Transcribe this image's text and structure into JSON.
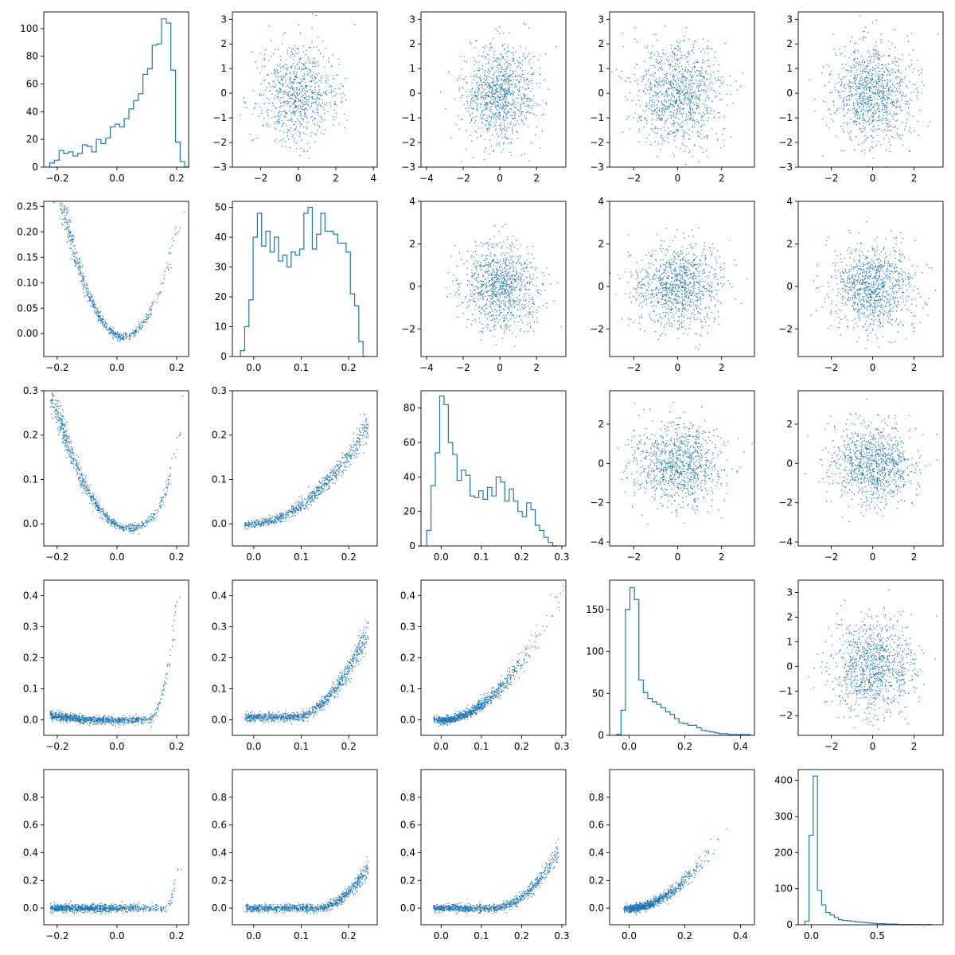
{
  "figure": {
    "rows": 5,
    "cols": 5
  },
  "style": {
    "line_color": "#1f77b4",
    "axes_color": "#000000",
    "background": "#ffffff"
  },
  "chart_data": [
    {
      "type": "histogram",
      "row": 0,
      "col": 0,
      "xlim": [
        -0.245,
        0.24
      ],
      "ylim": [
        0,
        112
      ],
      "xticks": [
        -0.2,
        0.0,
        0.2
      ],
      "xticklabels": [
        "−0.2",
        "0.0",
        "0.2"
      ],
      "yticks": [
        0,
        20,
        40,
        60,
        80,
        100
      ],
      "yticklabels": [
        "0",
        "20",
        "40",
        "60",
        "80",
        "100"
      ],
      "bins": [
        -0.225,
        -0.2094,
        -0.1938,
        -0.1782,
        -0.1626,
        -0.147,
        -0.1314,
        -0.1158,
        -0.1002,
        -0.0846,
        -0.069,
        -0.0534,
        -0.0378,
        -0.0222,
        -0.0066,
        0.009,
        0.0246,
        0.0402,
        0.0558,
        0.0714,
        0.087,
        0.1026,
        0.1182,
        0.1338,
        0.1494,
        0.165,
        0.1806,
        0.1962,
        0.2118,
        0.2274,
        0.243
      ],
      "counts": [
        3,
        5,
        12,
        10,
        11,
        8,
        10,
        16,
        15,
        11,
        20,
        17,
        21,
        29,
        31,
        29,
        35,
        42,
        48,
        53,
        67,
        71,
        88,
        89,
        107,
        104,
        70,
        18,
        4,
        0
      ]
    },
    {
      "type": "scatter",
      "row": 0,
      "col": 1,
      "xlim": [
        -3.5,
        4.2
      ],
      "ylim": [
        -3,
        3.3
      ],
      "dist": "gauss",
      "n": 800,
      "seed": 2,
      "xticks": [
        -2,
        0,
        2,
        4
      ],
      "xticklabels": [
        "−2",
        "0",
        "2",
        "4"
      ],
      "yticks": [
        -3,
        -2,
        -1,
        0,
        1,
        2,
        3
      ],
      "yticklabels": [
        "−3",
        "−2",
        "−1",
        "0",
        "1",
        "2",
        "3"
      ]
    },
    {
      "type": "scatter",
      "row": 0,
      "col": 2,
      "xlim": [
        -4.3,
        3.6
      ],
      "ylim": [
        -3,
        3.3
      ],
      "dist": "gauss",
      "n": 1000,
      "seed": 3,
      "xticks": [
        -4,
        -2,
        0,
        2
      ],
      "xticklabels": [
        "−4",
        "−2",
        "0",
        "2"
      ],
      "yticks": [
        -3,
        -2,
        -1,
        0,
        1,
        2,
        3
      ],
      "yticklabels": [
        "−3",
        "−2",
        "−1",
        "0",
        "1",
        "2",
        "3"
      ]
    },
    {
      "type": "scatter",
      "row": 0,
      "col": 3,
      "xlim": [
        -3.1,
        3.5
      ],
      "ylim": [
        -3,
        3.3
      ],
      "dist": "gauss",
      "n": 1000,
      "seed": 4,
      "xticks": [
        -2,
        0,
        2
      ],
      "xticklabels": [
        "−2",
        "0",
        "2"
      ],
      "yticks": [
        -3,
        -2,
        -1,
        0,
        1,
        2,
        3
      ],
      "yticklabels": [
        "−3",
        "−2",
        "−1",
        "0",
        "1",
        "2",
        "3"
      ]
    },
    {
      "type": "scatter",
      "row": 0,
      "col": 4,
      "xlim": [
        -3.6,
        3.4
      ],
      "ylim": [
        -3,
        3.3
      ],
      "dist": "gauss",
      "n": 1000,
      "seed": 5,
      "xticks": [
        -2,
        0,
        2
      ],
      "xticklabels": [
        "−2",
        "0",
        "2"
      ],
      "yticks": [
        -3,
        -2,
        -1,
        0,
        1,
        2,
        3
      ],
      "yticklabels": [
        "−3",
        "−2",
        "−1",
        "0",
        "1",
        "2",
        "3"
      ]
    },
    {
      "type": "scatter",
      "row": 1,
      "col": 0,
      "xlim": [
        -0.245,
        0.24
      ],
      "ylim": [
        -0.045,
        0.26
      ],
      "dist": "curve",
      "curve": "parab",
      "n": 700,
      "seed": 6,
      "xticks": [
        -0.2,
        0.0,
        0.2
      ],
      "xticklabels": [
        "−0.2",
        "0.0",
        "0.2"
      ],
      "yticks": [
        0,
        0.05,
        0.1,
        0.15,
        0.2,
        0.25
      ],
      "yticklabels": [
        "0.00",
        "0.05",
        "0.10",
        "0.15",
        "0.20",
        "0.25"
      ]
    },
    {
      "type": "histogram",
      "row": 1,
      "col": 1,
      "xlim": [
        -0.045,
        0.26
      ],
      "ylim": [
        0,
        52
      ],
      "xticks": [
        0.0,
        0.1,
        0.2
      ],
      "xticklabels": [
        "0.0",
        "0.1",
        "0.2"
      ],
      "yticks": [
        0,
        10,
        20,
        30,
        40,
        50
      ],
      "yticklabels": [
        "0",
        "10",
        "20",
        "30",
        "40",
        "50"
      ],
      "bins": [
        -0.028,
        -0.0191,
        -0.0102,
        -0.0013,
        0.0076,
        0.0165,
        0.0254,
        0.0343,
        0.0432,
        0.0521,
        0.061,
        0.0699,
        0.0788,
        0.0877,
        0.0966,
        0.1055,
        0.1144,
        0.1233,
        0.1322,
        0.1411,
        0.15,
        0.1589,
        0.1678,
        0.1767,
        0.1856,
        0.1945,
        0.2034,
        0.2123,
        0.2212,
        0.2301,
        0.239
      ],
      "counts": [
        2,
        10,
        19,
        40,
        48,
        37,
        42,
        35,
        40,
        32,
        34,
        30,
        35,
        34,
        36,
        48,
        50,
        36,
        41,
        48,
        42,
        42,
        41,
        38,
        38,
        35,
        21,
        17,
        5,
        0
      ]
    },
    {
      "type": "scatter",
      "row": 1,
      "col": 2,
      "xlim": [
        -4.3,
        3.6
      ],
      "ylim": [
        -3.3,
        4
      ],
      "dist": "gauss",
      "n": 1000,
      "seed": 7,
      "xticks": [
        -4,
        -2,
        0,
        2
      ],
      "xticklabels": [
        "−4",
        "−2",
        "0",
        "2"
      ],
      "yticks": [
        -2,
        0,
        2,
        4
      ],
      "yticklabels": [
        "−2",
        "0",
        "2",
        "4"
      ]
    },
    {
      "type": "scatter",
      "row": 1,
      "col": 3,
      "xlim": [
        -3.1,
        3.5
      ],
      "ylim": [
        -3.3,
        4
      ],
      "dist": "gauss",
      "n": 1000,
      "seed": 8,
      "xticks": [
        -2,
        0,
        2
      ],
      "xticklabels": [
        "−2",
        "0",
        "2"
      ],
      "yticks": [
        -2,
        0,
        2,
        4
      ],
      "yticklabels": [
        "−2",
        "0",
        "2",
        "4"
      ]
    },
    {
      "type": "scatter",
      "row": 1,
      "col": 4,
      "xlim": [
        -3.6,
        3.4
      ],
      "ylim": [
        -3.3,
        4
      ],
      "dist": "gauss",
      "n": 1000,
      "seed": 9,
      "xticks": [
        -2,
        0,
        2
      ],
      "xticklabels": [
        "−2",
        "0",
        "2"
      ],
      "yticks": [
        -2,
        0,
        2,
        4
      ],
      "yticklabels": [
        "−2",
        "0",
        "2",
        "4"
      ]
    },
    {
      "type": "scatter",
      "row": 2,
      "col": 0,
      "xlim": [
        -0.245,
        0.24
      ],
      "ylim": [
        -0.05,
        0.3
      ],
      "dist": "curve",
      "curve": "steep",
      "n": 800,
      "seed": 10,
      "xticks": [
        -0.2,
        0.0,
        0.2
      ],
      "xticklabels": [
        "−0.2",
        "0.0",
        "0.2"
      ],
      "yticks": [
        0,
        0.1,
        0.2,
        0.3
      ],
      "yticklabels": [
        "0.0",
        "0.1",
        "0.2",
        "0.3"
      ]
    },
    {
      "type": "scatter",
      "row": 2,
      "col": 1,
      "xlim": [
        -0.045,
        0.26
      ],
      "ylim": [
        -0.05,
        0.3
      ],
      "dist": "curve",
      "curve": "rise",
      "n": 800,
      "seed": 11,
      "xticks": [
        0.0,
        0.1,
        0.2
      ],
      "xticklabels": [
        "0.0",
        "0.1",
        "0.2"
      ],
      "yticks": [
        0,
        0.1,
        0.2,
        0.3
      ],
      "yticklabels": [
        "0.0",
        "0.1",
        "0.2",
        "0.3"
      ]
    },
    {
      "type": "histogram",
      "row": 2,
      "col": 2,
      "xlim": [
        -0.05,
        0.31
      ],
      "ylim": [
        0,
        90
      ],
      "xticks": [
        0.0,
        0.1,
        0.2,
        0.3
      ],
      "xticklabels": [
        "0.0",
        "0.1",
        "0.2",
        "0.3"
      ],
      "yticks": [
        0,
        20,
        40,
        60,
        80
      ],
      "yticklabels": [
        "0",
        "20",
        "40",
        "60",
        "80"
      ],
      "bins": [
        -0.036,
        -0.0252,
        -0.0144,
        -0.0036,
        0.0072,
        0.018,
        0.0288,
        0.0396,
        0.0504,
        0.0612,
        0.072,
        0.0828,
        0.0936,
        0.1044,
        0.1152,
        0.126,
        0.1368,
        0.1476,
        0.1584,
        0.1692,
        0.18,
        0.1908,
        0.2016,
        0.2124,
        0.2232,
        0.234,
        0.2448,
        0.2556,
        0.2664,
        0.2772,
        0.288
      ],
      "counts": [
        9,
        35,
        54,
        87,
        82,
        60,
        53,
        38,
        44,
        41,
        29,
        28,
        32,
        27,
        34,
        29,
        40,
        37,
        26,
        33,
        26,
        20,
        17,
        25,
        21,
        12,
        9,
        5,
        2,
        0
      ]
    },
    {
      "type": "scatter",
      "row": 2,
      "col": 3,
      "xlim": [
        -3.1,
        3.5
      ],
      "ylim": [
        -4.2,
        3.7
      ],
      "dist": "gauss",
      "n": 1000,
      "seed": 12,
      "xticks": [
        -2,
        0,
        2
      ],
      "xticklabels": [
        "−2",
        "0",
        "2"
      ],
      "yticks": [
        -4,
        -2,
        0,
        2
      ],
      "yticklabels": [
        "−4",
        "−2",
        "0",
        "2"
      ]
    },
    {
      "type": "scatter",
      "row": 2,
      "col": 4,
      "xlim": [
        -3.6,
        3.4
      ],
      "ylim": [
        -4.2,
        3.7
      ],
      "dist": "gauss",
      "n": 1000,
      "seed": 13,
      "xticks": [
        -2,
        0,
        2
      ],
      "xticklabels": [
        "−2",
        "0",
        "2"
      ],
      "yticks": [
        -4,
        -2,
        0,
        2
      ],
      "yticklabels": [
        "−4",
        "−2",
        "0",
        "2"
      ]
    },
    {
      "type": "scatter",
      "row": 3,
      "col": 0,
      "xlim": [
        -0.245,
        0.24
      ],
      "ylim": [
        -0.05,
        0.45
      ],
      "dist": "curve",
      "curve": "sharp",
      "n": 1000,
      "seed": 14,
      "xticks": [
        -0.2,
        0.0,
        0.2
      ],
      "xticklabels": [
        "−0.2",
        "0.0",
        "0.2"
      ],
      "yticks": [
        0,
        0.1,
        0.2,
        0.3,
        0.4
      ],
      "yticklabels": [
        "0.0",
        "0.1",
        "0.2",
        "0.3",
        "0.4"
      ]
    },
    {
      "type": "scatter",
      "row": 3,
      "col": 1,
      "xlim": [
        -0.045,
        0.26
      ],
      "ylim": [
        -0.05,
        0.45
      ],
      "dist": "curve",
      "curve": "rise2",
      "n": 1000,
      "seed": 15,
      "xticks": [
        0.0,
        0.1,
        0.2
      ],
      "xticklabels": [
        "0.0",
        "0.1",
        "0.2"
      ],
      "yticks": [
        0,
        0.1,
        0.2,
        0.3,
        0.4
      ],
      "yticklabels": [
        "0.0",
        "0.1",
        "0.2",
        "0.3",
        "0.4"
      ]
    },
    {
      "type": "scatter",
      "row": 3,
      "col": 2,
      "xlim": [
        -0.05,
        0.31
      ],
      "ylim": [
        -0.05,
        0.45
      ],
      "dist": "curve",
      "curve": "smooth",
      "n": 1000,
      "seed": 16,
      "xticks": [
        0.0,
        0.1,
        0.2,
        0.3
      ],
      "xticklabels": [
        "0.0",
        "0.1",
        "0.2",
        "0.3"
      ],
      "yticks": [
        0,
        0.1,
        0.2,
        0.3,
        0.4
      ],
      "yticklabels": [
        "0.0",
        "0.1",
        "0.2",
        "0.3",
        "0.4"
      ]
    },
    {
      "type": "histogram",
      "row": 3,
      "col": 3,
      "xlim": [
        -0.07,
        0.45
      ],
      "ylim": [
        0,
        185
      ],
      "xticks": [
        0.0,
        0.2,
        0.4
      ],
      "xticklabels": [
        "0.0",
        "0.2",
        "0.4"
      ],
      "yticks": [
        0,
        50,
        100,
        150
      ],
      "yticklabels": [
        "0",
        "50",
        "100",
        "150"
      ],
      "bins": [
        -0.045,
        -0.029,
        -0.013,
        0.003,
        0.019,
        0.035,
        0.051,
        0.067,
        0.083,
        0.099,
        0.115,
        0.131,
        0.147,
        0.163,
        0.179,
        0.195,
        0.211,
        0.227,
        0.243,
        0.259,
        0.275,
        0.291,
        0.307,
        0.323,
        0.339,
        0.355,
        0.371,
        0.387,
        0.403,
        0.419,
        0.435
      ],
      "counts": [
        1,
        30,
        150,
        176,
        162,
        66,
        51,
        44,
        40,
        37,
        33,
        28,
        25,
        20,
        15,
        14,
        12,
        12,
        9,
        6,
        5,
        4,
        3,
        2,
        2,
        1,
        1,
        1,
        1,
        1
      ]
    },
    {
      "type": "scatter",
      "row": 3,
      "col": 4,
      "xlim": [
        -3.6,
        3.4
      ],
      "ylim": [
        -2.8,
        3.5
      ],
      "dist": "gauss",
      "n": 1000,
      "seed": 17,
      "xticks": [
        -2,
        0,
        2
      ],
      "xticklabels": [
        "−2",
        "0",
        "2"
      ],
      "yticks": [
        -2,
        -1,
        0,
        1,
        2,
        3
      ],
      "yticklabels": [
        "−2",
        "−1",
        "0",
        "1",
        "2",
        "3"
      ]
    },
    {
      "type": "scatter",
      "row": 4,
      "col": 0,
      "xlim": [
        -0.245,
        0.24
      ],
      "ylim": [
        -0.12,
        1.0
      ],
      "dist": "curve",
      "curve": "flatsharp",
      "n": 1000,
      "seed": 18,
      "xticks": [
        -0.2,
        0.0,
        0.2
      ],
      "xticklabels": [
        "−0.2",
        "0.0",
        "0.2"
      ],
      "yticks": [
        0,
        0.2,
        0.4,
        0.6,
        0.8
      ],
      "yticklabels": [
        "0.0",
        "0.2",
        "0.4",
        "0.6",
        "0.8"
      ]
    },
    {
      "type": "scatter",
      "row": 4,
      "col": 1,
      "xlim": [
        -0.045,
        0.26
      ],
      "ylim": [
        -0.12,
        1.0
      ],
      "dist": "curve",
      "curve": "flatrise",
      "n": 1000,
      "seed": 19,
      "xticks": [
        0.0,
        0.1,
        0.2
      ],
      "xticklabels": [
        "0.0",
        "0.1",
        "0.2"
      ],
      "yticks": [
        0,
        0.2,
        0.4,
        0.6,
        0.8
      ],
      "yticklabels": [
        "0.0",
        "0.2",
        "0.4",
        "0.6",
        "0.8"
      ]
    },
    {
      "type": "scatter",
      "row": 4,
      "col": 2,
      "xlim": [
        -0.05,
        0.31
      ],
      "ylim": [
        -0.12,
        1.0
      ],
      "dist": "curve",
      "curve": "flatrise2",
      "n": 1000,
      "seed": 20,
      "xticks": [
        0.0,
        0.1,
        0.2,
        0.3
      ],
      "xticklabels": [
        "0.0",
        "0.1",
        "0.2",
        "0.3"
      ],
      "yticks": [
        0,
        0.2,
        0.4,
        0.6,
        0.8
      ],
      "yticklabels": [
        "0.0",
        "0.2",
        "0.4",
        "0.6",
        "0.8"
      ]
    },
    {
      "type": "scatter",
      "row": 4,
      "col": 3,
      "xlim": [
        -0.07,
        0.45
      ],
      "ylim": [
        -0.12,
        1.0
      ],
      "dist": "curve",
      "curve": "quad",
      "n": 1000,
      "seed": 21,
      "xticks": [
        0.0,
        0.2,
        0.4
      ],
      "xticklabels": [
        "0.0",
        "0.2",
        "0.4"
      ],
      "yticks": [
        0,
        0.2,
        0.4,
        0.6,
        0.8
      ],
      "yticklabels": [
        "0.0",
        "0.2",
        "0.4",
        "0.6",
        "0.8"
      ]
    },
    {
      "type": "histogram",
      "row": 4,
      "col": 4,
      "xlim": [
        -0.1,
        1.0
      ],
      "ylim": [
        0,
        430
      ],
      "xticks": [
        0.0,
        0.5
      ],
      "xticklabels": [
        "0.0",
        "0.5"
      ],
      "yticks": [
        0,
        100,
        200,
        300,
        400
      ],
      "yticklabels": [
        "0",
        "100",
        "200",
        "300",
        "400"
      ],
      "bins": [
        -0.05,
        -0.018,
        0.014,
        0.046,
        0.078,
        0.11,
        0.142,
        0.174,
        0.206,
        0.238,
        0.27,
        0.302,
        0.334,
        0.366,
        0.398,
        0.43,
        0.462,
        0.494,
        0.526,
        0.558,
        0.59,
        0.622,
        0.654,
        0.686,
        0.718,
        0.75,
        0.782,
        0.814,
        0.846,
        0.878,
        0.91
      ],
      "counts": [
        10,
        248,
        412,
        95,
        55,
        34,
        27,
        20,
        14,
        12,
        11,
        10,
        8,
        7,
        6,
        5,
        4,
        3,
        3,
        2,
        2,
        2,
        1,
        1,
        1,
        1,
        0,
        1,
        0,
        1
      ]
    }
  ]
}
